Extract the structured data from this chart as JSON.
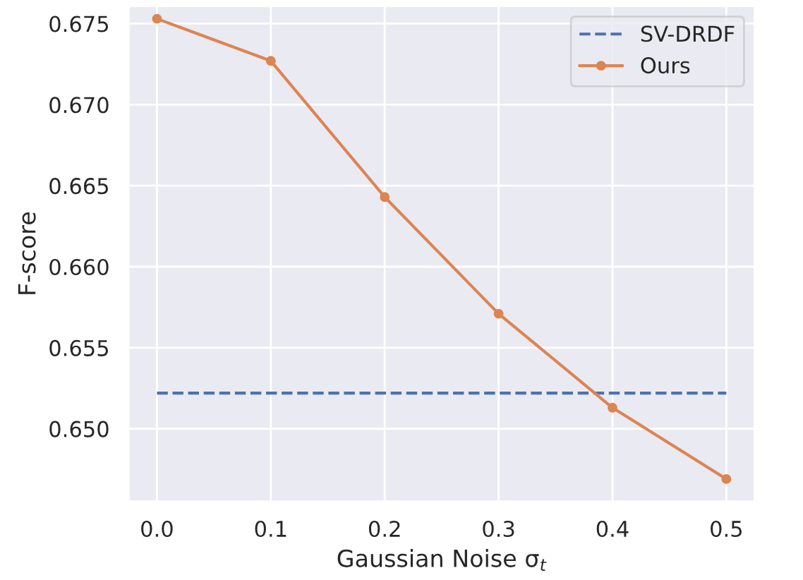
{
  "chart_data": {
    "type": "line",
    "xlabel": "Gaussian Noise σ$_{t}$",
    "ylabel": "F-score",
    "x": [
      0.0,
      0.1,
      0.2,
      0.3,
      0.4,
      0.5
    ],
    "series": [
      {
        "name": "SV-DRDF",
        "color": "#4c72b0",
        "values": [
          0.6522,
          0.6522,
          0.6522,
          0.6522,
          0.6522,
          0.6522
        ],
        "line_style": "dashed",
        "marker": "none"
      },
      {
        "name": "Ours",
        "color": "#dd8452",
        "values": [
          0.6753,
          0.6727,
          0.6643,
          0.6571,
          0.6513,
          0.6469
        ],
        "line_style": "solid",
        "marker": "circle"
      }
    ],
    "xlim": [
      -0.025,
      0.525
    ],
    "xticks": [
      {
        "value": 0.0,
        "label": "0.0"
      },
      0.1,
      0.2,
      0.3,
      0.4,
      0.5
    ],
    "ylim": [
      0.6455,
      0.6761
    ],
    "yticks": [
      {
        "value": 0.65,
        "label": "0.650"
      },
      0.655,
      {
        "value": 0.66,
        "label": "0.660"
      },
      0.665,
      {
        "value": 0.67,
        "label": "0.670"
      },
      0.675
    ],
    "grid": true,
    "legend": "top right"
  }
}
